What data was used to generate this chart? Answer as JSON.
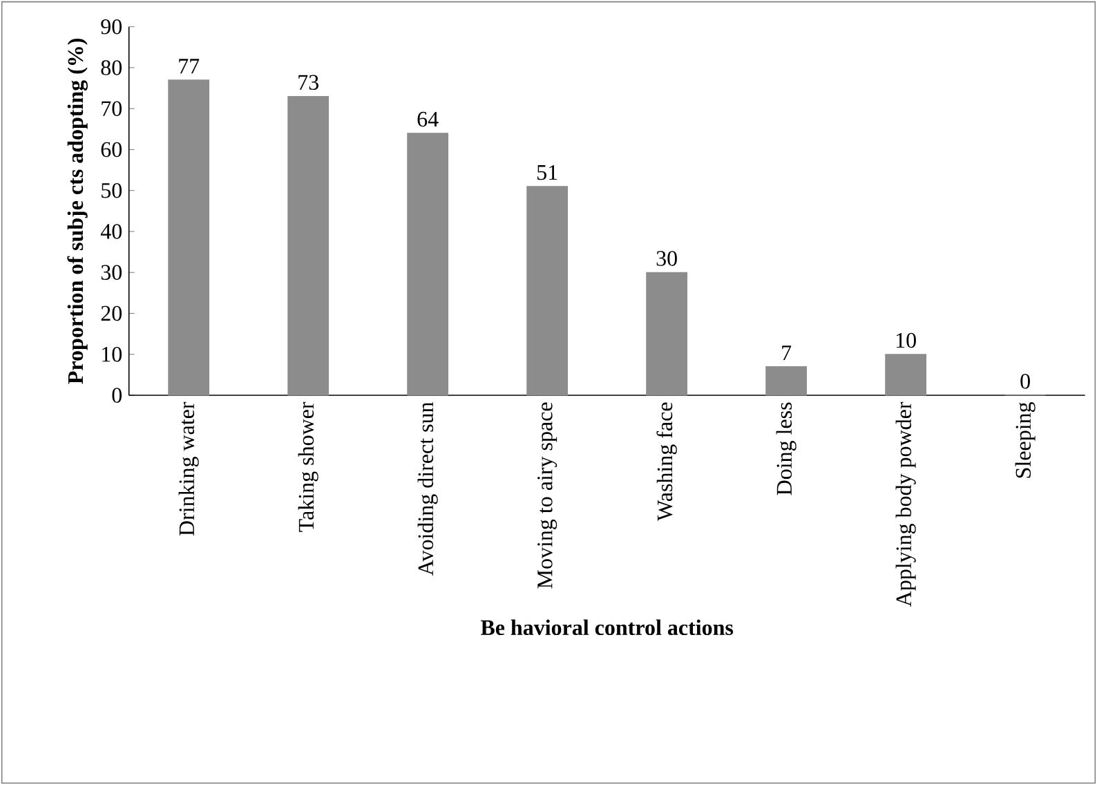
{
  "chart_data": {
    "type": "bar",
    "xlabel": "Be havioral control actions",
    "ylabel": "Proportion of subje cts adopting (%)",
    "categories": [
      "Drinking water",
      "Taking shower",
      "Avoiding direct sun",
      "Moving to airy space",
      "Washing face",
      "Doing less",
      "Applying body powder",
      "Sleeping"
    ],
    "values": [
      77,
      73,
      64,
      51,
      30,
      7,
      10,
      0
    ],
    "color": "#8c8c8c",
    "ylim": [
      0,
      90
    ],
    "yticks": [
      0,
      10,
      20,
      30,
      40,
      50,
      60,
      70,
      80,
      90
    ],
    "data_labels": true,
    "grid": false
  }
}
